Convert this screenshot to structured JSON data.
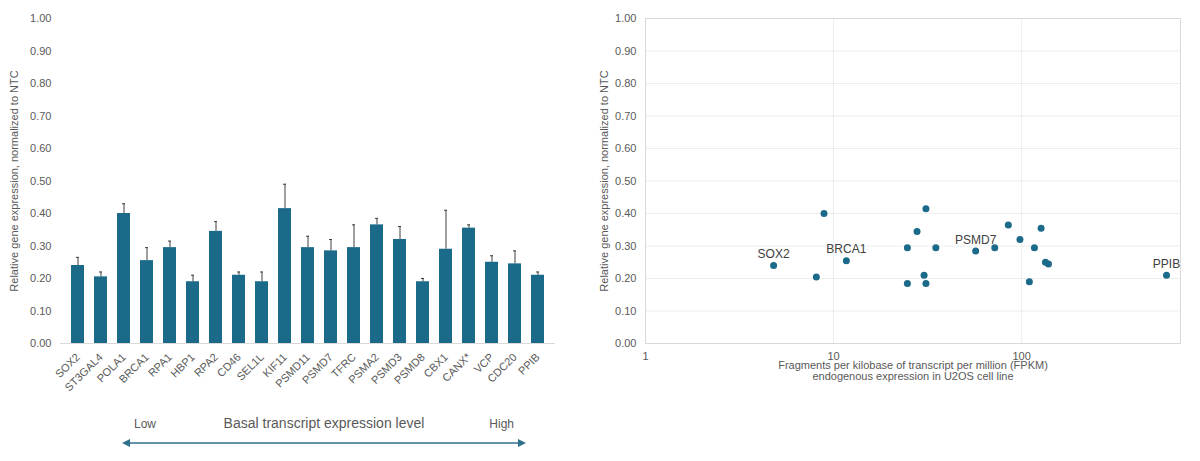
{
  "chart_data": [
    {
      "type": "bar",
      "categories": [
        "SOX2",
        "ST3GAL4",
        "POLA1",
        "BRCA1",
        "RPA1",
        "HBP1",
        "RPA2",
        "CD46",
        "SEL1L",
        "KIF11",
        "PSMD11",
        "PSMD7",
        "TFRC",
        "PSMA2",
        "PSMD3",
        "PSMD8",
        "CBX1",
        "CANX*",
        "VCP",
        "CDC20",
        "PPIB"
      ],
      "values": [
        0.24,
        0.205,
        0.4,
        0.255,
        0.295,
        0.19,
        0.345,
        0.21,
        0.19,
        0.415,
        0.295,
        0.285,
        0.295,
        0.365,
        0.32,
        0.19,
        0.29,
        0.355,
        0.25,
        0.245,
        0.21
      ],
      "errors": [
        0.025,
        0.015,
        0.03,
        0.04,
        0.02,
        0.02,
        0.03,
        0.01,
        0.03,
        0.075,
        0.035,
        0.035,
        0.07,
        0.02,
        0.04,
        0.01,
        0.12,
        0.01,
        0.02,
        0.04,
        0.01
      ],
      "color": "#1b6a8a",
      "ylabel": "Relative gene expression, normalized to NTC",
      "ylim": [
        0,
        1
      ],
      "yticks": [
        {
          "value": 0,
          "label": "0.00"
        },
        {
          "value": 0.1,
          "label": "0.10"
        },
        {
          "value": 0.2,
          "label": "0.20"
        },
        {
          "value": 0.3,
          "label": "0.30"
        },
        {
          "value": 0.4,
          "label": "0.40"
        },
        {
          "value": 0.5,
          "label": "0.50"
        },
        {
          "value": 0.6,
          "label": "0.60"
        },
        {
          "value": 0.7,
          "label": "0.70"
        },
        {
          "value": 0.8,
          "label": "0.80"
        },
        {
          "value": 0.9,
          "label": "0.90"
        },
        {
          "value": 1,
          "label": "1.00"
        }
      ],
      "grid": false,
      "arrow_labels": {
        "start": "Low",
        "middle": "Basal transcript expression level",
        "end": "High"
      }
    },
    {
      "type": "scatter",
      "x": [
        4.8,
        8.1,
        8.9,
        11.7,
        24.7,
        24.7,
        27.8,
        30.3,
        31,
        31,
        35,
        57,
        72,
        85,
        98,
        110,
        117,
        127,
        134,
        139,
        590
      ],
      "values": [
        0.24,
        0.205,
        0.4,
        0.255,
        0.295,
        0.185,
        0.345,
        0.21,
        0.185,
        0.415,
        0.295,
        0.285,
        0.295,
        0.365,
        0.32,
        0.19,
        0.295,
        0.355,
        0.25,
        0.245,
        0.21
      ],
      "color": "#1b6a8a",
      "log": "x",
      "xlabel": "Fragments per kilobase of transcript per million (FPKM)\nendogenous expression in U2OS cell line",
      "ylabel": "Relative gene expression, normalized to NTC",
      "xlim": [
        1,
        700
      ],
      "xticks": [
        1,
        10,
        100
      ],
      "ylim": [
        0,
        1
      ],
      "yticks": [
        {
          "value": 0,
          "label": "0.00"
        },
        {
          "value": 0.1,
          "label": "0.10"
        },
        {
          "value": 0.2,
          "label": "0.20"
        },
        {
          "value": 0.3,
          "label": "0.30"
        },
        {
          "value": 0.4,
          "label": "0.40"
        },
        {
          "value": 0.5,
          "label": "0.50"
        },
        {
          "value": 0.6,
          "label": "0.60"
        },
        {
          "value": 0.7,
          "label": "0.70"
        },
        {
          "value": 0.8,
          "label": "0.80"
        },
        {
          "value": 0.9,
          "label": "0.90"
        },
        {
          "value": 1,
          "label": "1.00"
        }
      ],
      "grid": true,
      "annotations": [
        {
          "text": "SOX2",
          "x": 4.8,
          "y": 0.24
        },
        {
          "text": "BRCA1",
          "x": 11.7,
          "y": 0.255
        },
        {
          "text": "PSMD7",
          "x": 57,
          "y": 0.285
        },
        {
          "text": "PPIB",
          "x": 590,
          "y": 0.21
        }
      ]
    }
  ]
}
